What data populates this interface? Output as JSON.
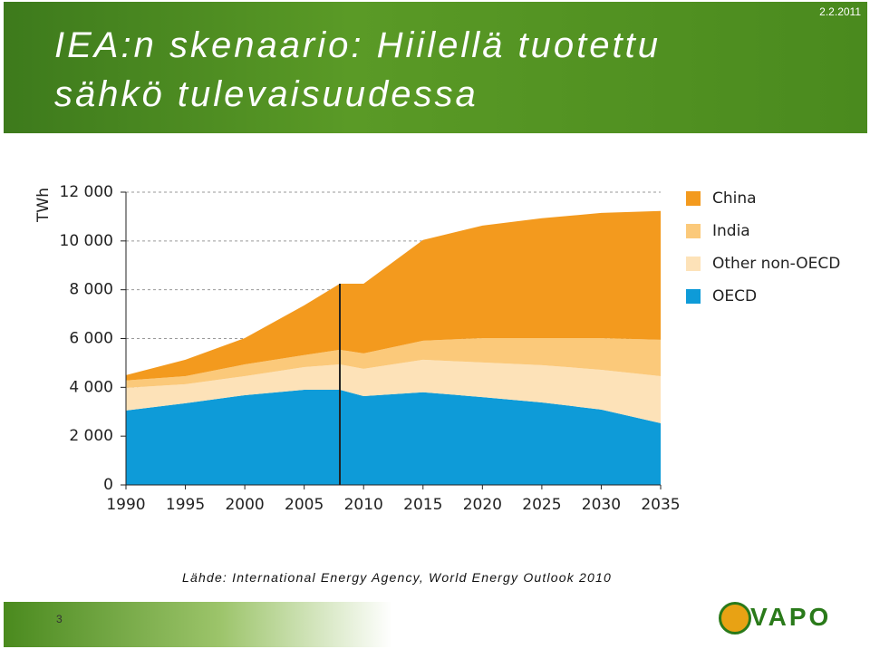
{
  "header": {
    "title": [
      "IEA:n skenaario: Hiilellä tuotettu",
      "sähkö tulevaisuudessa"
    ],
    "date": "2.2.2011"
  },
  "chart_data": {
    "type": "stacked_area",
    "ylabel": "TWh",
    "x": [
      1990,
      1995,
      2000,
      2005,
      2008,
      2010,
      2015,
      2020,
      2025,
      2030,
      2035
    ],
    "series": [
      {
        "name": "OECD",
        "color": "#0e9bd8",
        "values": [
          3050,
          3350,
          3680,
          3900,
          3900,
          3640,
          3800,
          3600,
          3380,
          3090,
          2530
        ]
      },
      {
        "name": "Other non-OECD",
        "color": "#fde2b8",
        "values": [
          930,
          780,
          780,
          930,
          1040,
          1120,
          1330,
          1420,
          1530,
          1630,
          1930
        ]
      },
      {
        "name": "India",
        "color": "#fbc97a",
        "values": [
          300,
          330,
          480,
          490,
          600,
          630,
          780,
          1000,
          1110,
          1300,
          1490
        ]
      },
      {
        "name": "China",
        "color": "#f39a1e",
        "values": [
          220,
          670,
          1080,
          2040,
          2710,
          2860,
          4130,
          4610,
          4910,
          5130,
          5280
        ]
      }
    ],
    "xlim": [
      1990,
      2035
    ],
    "xticks": [
      1990,
      1995,
      2000,
      2005,
      2010,
      2015,
      2020,
      2025,
      2030,
      2035
    ],
    "ylim": [
      0,
      12000
    ],
    "yticks": [
      0,
      {
        "value": 2000,
        "label": "2 000"
      },
      {
        "value": 4000,
        "label": "4 000"
      },
      {
        "value": 6000,
        "label": "6 000"
      },
      {
        "value": 8000,
        "label": "8 000"
      },
      {
        "value": 10000,
        "label": "10 000"
      },
      {
        "value": 12000,
        "label": "12 000"
      }
    ],
    "vline": 2008,
    "grid": true,
    "legend": "right"
  },
  "footer": {
    "source": "Lähde: International Energy Agency, World Energy Outlook 2010",
    "page": "3",
    "logo": "VAPO"
  }
}
